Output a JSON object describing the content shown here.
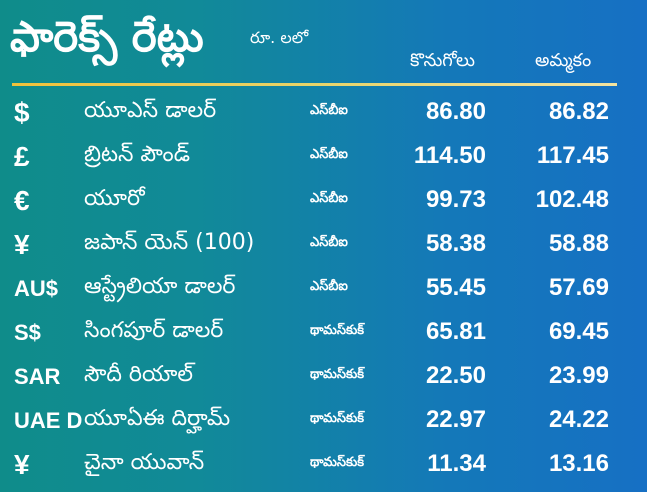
{
  "header": {
    "title": "ఫారెక్స్ రేట్లు",
    "unit": "రూ. లలో",
    "col_buy": "కొనుగోలు",
    "col_sell": "అమ్మకం"
  },
  "colors": {
    "background_left": "#0f8c8a",
    "background_right": "#1670c4",
    "text": "#ffffff",
    "rule": "#f0c23b"
  },
  "rows": [
    {
      "symbol": "$",
      "currency": "యూఎస్ డాలర్",
      "source": "ఎస్‌బీఐ",
      "buy": "86.80",
      "sell": "86.82"
    },
    {
      "symbol": "£",
      "currency": "బ్రిటన్ పౌండ్",
      "source": "ఎస్‌బీఐ",
      "buy": "114.50",
      "sell": "117.45"
    },
    {
      "symbol": "€",
      "currency": "యూరో",
      "source": "ఎస్‌బీఐ",
      "buy": "99.73",
      "sell": "102.48"
    },
    {
      "symbol": "¥",
      "currency": "జపాన్ యెన్ (100)",
      "source": "ఎస్‌బీఐ",
      "buy": "58.38",
      "sell": "58.88"
    },
    {
      "symbol": "AU$",
      "currency": "ఆస్ట్రేలియా డాలర్",
      "source": "ఎస్‌బీఐ",
      "buy": "55.45",
      "sell": "57.69"
    },
    {
      "symbol": "S$",
      "currency": "సింగపూర్ డాలర్",
      "source": "థామస్‌కుక్",
      "buy": "65.81",
      "sell": "69.45"
    },
    {
      "symbol": "SAR",
      "currency": "సౌదీ రియాల్",
      "source": "థామస్‌కుక్",
      "buy": "22.50",
      "sell": "23.99"
    },
    {
      "symbol": "UAE D",
      "currency": "యూఏఈ దిర్హామ్",
      "source": "థామస్‌కుక్",
      "buy": "22.97",
      "sell": "24.22"
    },
    {
      "symbol": "¥",
      "currency": "చైనా యువాన్",
      "source": "థామస్‌కుక్",
      "buy": "11.34",
      "sell": "13.16"
    }
  ]
}
